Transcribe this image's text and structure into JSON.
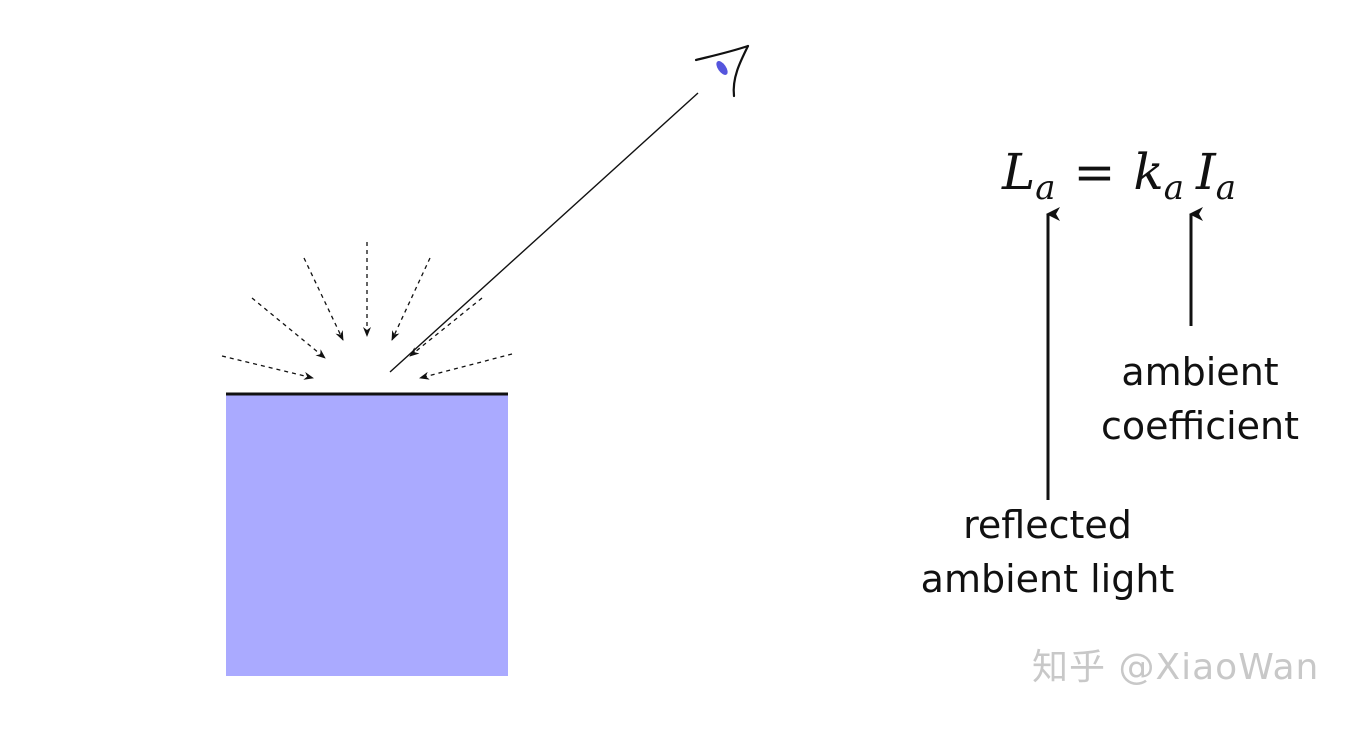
{
  "equation": {
    "lhs": "L",
    "lhs_sub": "a",
    "equals": "=",
    "coef": "k",
    "coef_sub": "a",
    "intensity": "I",
    "intensity_sub": "a"
  },
  "labels": {
    "coefficient": [
      "ambient",
      "coefficient"
    ],
    "reflected": [
      "reflected",
      "ambient light"
    ]
  },
  "watermark": "知乎 @XiaoWan",
  "colors": {
    "surface_fill": "#aaaaff",
    "line": "#111111",
    "eye_pupil": "#5555dd",
    "watermark": "#c8c8c8"
  },
  "icons": {
    "viewer": "eye-icon"
  }
}
